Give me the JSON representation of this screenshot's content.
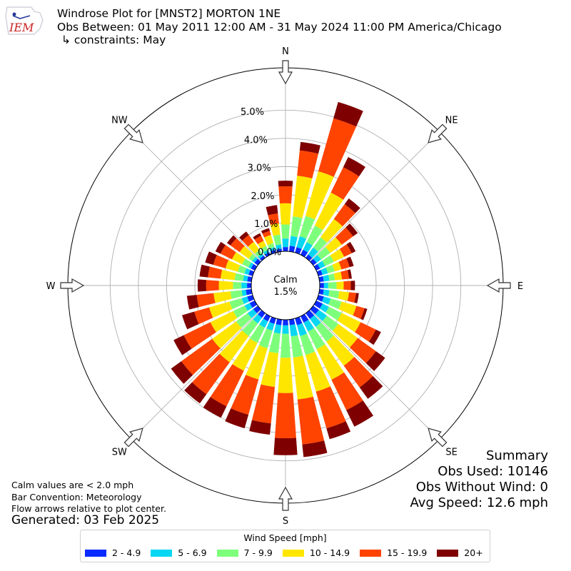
{
  "header": {
    "line1": "Windrose Plot for [MNST2] MORTON 1NE",
    "line2": "Obs Between: 01 May 2011 12:00 AM - 31 May 2024 11:00 PM America/Chicago",
    "line3": "↳ constraints: May",
    "logo_text": "IEM"
  },
  "footer": {
    "note1": "Calm values are < 2.0 mph",
    "note2": "Bar Convention: Meteorology",
    "note3": "Flow arrows relative to plot center.",
    "generated": "Generated: 03 Feb 2025"
  },
  "summary": {
    "title": "Summary",
    "obs_used": "Obs Used: 10146",
    "obs_without_wind": "Obs Without Wind: 0",
    "avg_speed": "Avg Speed: 12.6 mph"
  },
  "legend": {
    "title": "Wind Speed [mph]",
    "items": [
      {
        "label": "2 - 4.9",
        "color": "#0a2bff"
      },
      {
        "label": "5 - 6.9",
        "color": "#08d6f2"
      },
      {
        "label": "7 - 9.9",
        "color": "#7eff7c"
      },
      {
        "label": "10 - 14.9",
        "color": "#ffe600"
      },
      {
        "label": "15 - 19.9",
        "color": "#ff4300"
      },
      {
        "label": "20+",
        "color": "#7f0000"
      }
    ]
  },
  "chart_data": {
    "type": "windrose",
    "calm": {
      "label": "Calm",
      "value": "1.5%"
    },
    "radial_ticks": [
      "0.0%",
      "1.0%",
      "2.0%",
      "3.0%",
      "4.0%",
      "5.0%"
    ],
    "radial_tick_values": [
      0,
      1,
      2,
      3,
      4,
      5
    ],
    "radial_max": 6.5,
    "grid": true,
    "compass_labels": [
      "N",
      "NE",
      "E",
      "SE",
      "S",
      "SW",
      "W",
      "NW"
    ],
    "bins": [
      "2 - 4.9",
      "5 - 6.9",
      "7 - 9.9",
      "10 - 14.9",
      "15 - 19.9",
      "20+"
    ],
    "directions_deg": [
      0,
      10,
      20,
      30,
      40,
      50,
      60,
      70,
      80,
      90,
      100,
      110,
      120,
      130,
      140,
      150,
      160,
      170,
      180,
      190,
      200,
      210,
      220,
      230,
      240,
      250,
      260,
      270,
      280,
      290,
      300,
      310,
      320,
      330,
      340,
      350
    ],
    "cumulative_percent": [
      [
        0.15,
        0.45,
        0.95,
        1.7,
        2.3,
        2.5
      ],
      [
        0.2,
        0.55,
        1.25,
        2.7,
        3.6,
        3.9
      ],
      [
        0.2,
        0.6,
        1.35,
        3.0,
        4.95,
        5.55
      ],
      [
        0.2,
        0.5,
        1.15,
        2.45,
        3.45,
        3.85
      ],
      [
        0.15,
        0.45,
        0.9,
        1.7,
        2.35,
        2.6
      ],
      [
        0.15,
        0.35,
        0.75,
        1.25,
        1.75,
        1.95
      ],
      [
        0.15,
        0.35,
        0.7,
        1.1,
        1.4,
        1.55
      ],
      [
        0.15,
        0.35,
        0.6,
        0.85,
        1.15,
        1.3
      ],
      [
        0.15,
        0.35,
        0.55,
        0.8,
        1.05,
        1.15
      ],
      [
        0.15,
        0.3,
        0.6,
        0.85,
        1.1,
        1.25
      ],
      [
        0.15,
        0.35,
        0.7,
        1.05,
        1.3,
        1.4
      ],
      [
        0.2,
        0.45,
        0.85,
        1.4,
        1.7,
        1.8
      ],
      [
        0.25,
        0.5,
        1.0,
        1.75,
        2.35,
        2.55
      ],
      [
        0.25,
        0.6,
        1.1,
        1.95,
        2.75,
        3.15
      ],
      [
        0.25,
        0.6,
        1.25,
        2.3,
        3.25,
        3.75
      ],
      [
        0.25,
        0.6,
        1.3,
        2.5,
        3.7,
        4.35
      ],
      [
        0.25,
        0.65,
        1.35,
        2.7,
        4.05,
        4.45
      ],
      [
        0.2,
        0.6,
        1.35,
        2.85,
        4.45,
        4.9
      ],
      [
        0.2,
        0.5,
        1.35,
        2.6,
        4.2,
        4.8
      ],
      [
        0.2,
        0.5,
        1.2,
        2.4,
        3.7,
        4.1
      ],
      [
        0.2,
        0.45,
        1.1,
        2.25,
        3.55,
        4.05
      ],
      [
        0.2,
        0.45,
        1.05,
        2.15,
        3.55,
        4.0
      ],
      [
        0.2,
        0.45,
        1.0,
        2.15,
        3.55,
        3.95
      ],
      [
        0.2,
        0.45,
        0.95,
        2.0,
        3.35,
        3.8
      ],
      [
        0.2,
        0.4,
        0.85,
        1.75,
        2.8,
        3.2
      ],
      [
        0.2,
        0.4,
        0.85,
        1.6,
        2.15,
        2.6
      ],
      [
        0.2,
        0.35,
        0.75,
        1.35,
        1.95,
        2.3
      ],
      [
        0.15,
        0.35,
        0.65,
        1.15,
        1.6,
        1.9
      ],
      [
        0.15,
        0.3,
        0.6,
        1.1,
        1.55,
        1.85
      ],
      [
        0.15,
        0.3,
        0.55,
        1.0,
        1.45,
        1.75
      ],
      [
        0.15,
        0.25,
        0.5,
        0.9,
        1.35,
        1.55
      ],
      [
        0.15,
        0.25,
        0.4,
        0.8,
        1.2,
        1.35
      ],
      [
        0.1,
        0.2,
        0.35,
        0.7,
        1.0,
        1.15
      ],
      [
        0.1,
        0.2,
        0.35,
        0.55,
        0.75,
        0.85
      ],
      [
        0.1,
        0.2,
        0.35,
        0.65,
        0.8,
        0.9
      ],
      [
        0.1,
        0.25,
        0.6,
        1.0,
        1.35,
        1.65
      ]
    ]
  }
}
